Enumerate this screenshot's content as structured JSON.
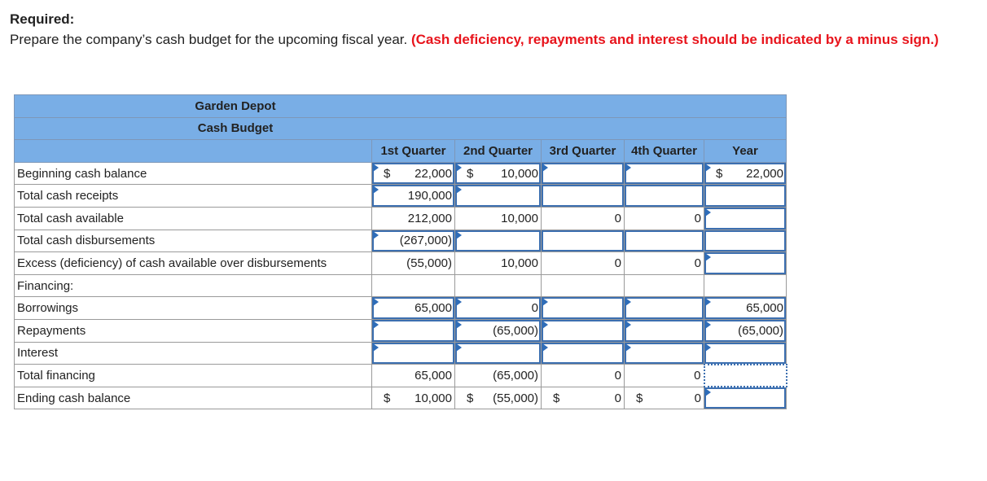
{
  "header": {
    "required_label": "Required:",
    "instruction": "Prepare the company’s cash budget for the upcoming fiscal year.",
    "note": "(Cash deficiency, repayments and interest should be indicated by a minus sign.)"
  },
  "table": {
    "company": "Garden Depot",
    "title": "Cash Budget",
    "columns": [
      "1st Quarter",
      "2nd Quarter",
      "3rd Quarter",
      "4th Quarter",
      "Year"
    ],
    "rows": [
      {
        "label": "Beginning cash balance",
        "cells": [
          {
            "cur": "$",
            "val": "22,000"
          },
          {
            "cur": "$",
            "val": "10,000"
          },
          {
            "cur": "",
            "val": ""
          },
          {
            "cur": "",
            "val": ""
          },
          {
            "cur": "$",
            "val": "22,000"
          }
        ]
      },
      {
        "label": "Total cash receipts",
        "cells": [
          {
            "cur": "",
            "val": "190,000"
          },
          {
            "cur": "",
            "val": ""
          },
          {
            "cur": "",
            "val": ""
          },
          {
            "cur": "",
            "val": ""
          },
          {
            "cur": "",
            "val": ""
          }
        ]
      },
      {
        "label": "Total cash available",
        "cells": [
          {
            "cur": "",
            "val": "212,000"
          },
          {
            "cur": "",
            "val": "10,000"
          },
          {
            "cur": "",
            "val": "0"
          },
          {
            "cur": "",
            "val": "0"
          },
          {
            "cur": "",
            "val": ""
          }
        ]
      },
      {
        "label": "Total cash disbursements",
        "cells": [
          {
            "cur": "",
            "val": "(267,000)"
          },
          {
            "cur": "",
            "val": ""
          },
          {
            "cur": "",
            "val": ""
          },
          {
            "cur": "",
            "val": ""
          },
          {
            "cur": "",
            "val": ""
          }
        ]
      },
      {
        "label": "Excess (deficiency) of cash available over disbursements",
        "cells": [
          {
            "cur": "",
            "val": "(55,000)"
          },
          {
            "cur": "",
            "val": "10,000"
          },
          {
            "cur": "",
            "val": "0"
          },
          {
            "cur": "",
            "val": "0"
          },
          {
            "cur": "",
            "val": ""
          }
        ]
      },
      {
        "label": "Financing:",
        "cells": [
          {
            "cur": "",
            "val": ""
          },
          {
            "cur": "",
            "val": ""
          },
          {
            "cur": "",
            "val": ""
          },
          {
            "cur": "",
            "val": ""
          },
          {
            "cur": "",
            "val": ""
          }
        ]
      },
      {
        "label": "Borrowings",
        "cells": [
          {
            "cur": "",
            "val": "65,000"
          },
          {
            "cur": "",
            "val": "0"
          },
          {
            "cur": "",
            "val": ""
          },
          {
            "cur": "",
            "val": ""
          },
          {
            "cur": "",
            "val": "65,000"
          }
        ]
      },
      {
        "label": "Repayments",
        "cells": [
          {
            "cur": "",
            "val": ""
          },
          {
            "cur": "",
            "val": "(65,000)"
          },
          {
            "cur": "",
            "val": ""
          },
          {
            "cur": "",
            "val": ""
          },
          {
            "cur": "",
            "val": "(65,000)"
          }
        ]
      },
      {
        "label": "Interest",
        "cells": [
          {
            "cur": "",
            "val": ""
          },
          {
            "cur": "",
            "val": ""
          },
          {
            "cur": "",
            "val": ""
          },
          {
            "cur": "",
            "val": ""
          },
          {
            "cur": "",
            "val": ""
          }
        ]
      },
      {
        "label": "Total financing",
        "cells": [
          {
            "cur": "",
            "val": "65,000"
          },
          {
            "cur": "",
            "val": "(65,000)"
          },
          {
            "cur": "",
            "val": "0"
          },
          {
            "cur": "",
            "val": "0"
          },
          {
            "cur": "",
            "val": ""
          }
        ]
      },
      {
        "label": "Ending cash balance",
        "cells": [
          {
            "cur": "$",
            "val": "10,000"
          },
          {
            "cur": "$",
            "val": "(55,000)"
          },
          {
            "cur": "$",
            "val": "0"
          },
          {
            "cur": "$",
            "val": "0"
          },
          {
            "cur": "",
            "val": ""
          }
        ]
      }
    ]
  },
  "colors": {
    "header_bg": "#79aee6",
    "note_red": "#e8141c",
    "input_border": "#3c6fb0"
  }
}
